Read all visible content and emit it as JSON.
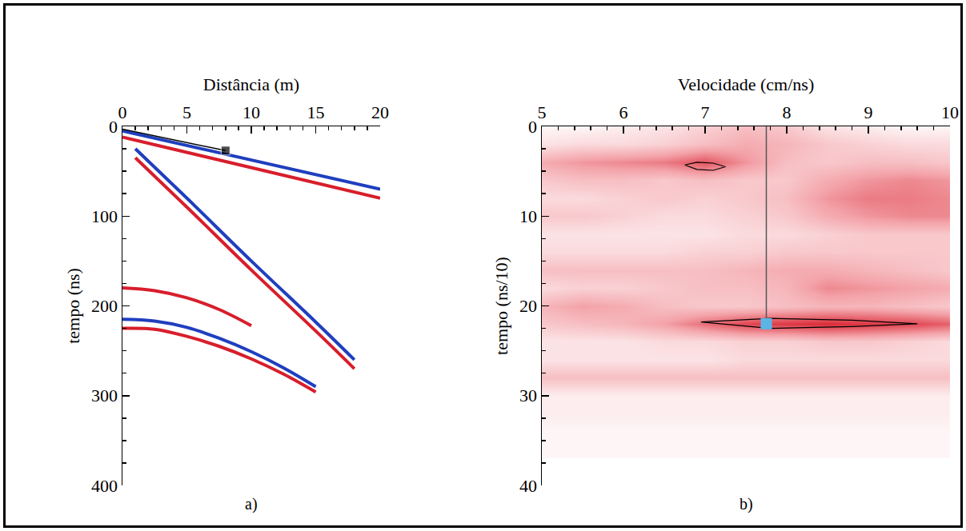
{
  "chart_data": [
    {
      "type": "line",
      "panel_label": "a)",
      "x_label": "Distância (m)",
      "y_label": "tempo (ns)",
      "xlim": [
        0,
        20
      ],
      "xticks": [
        0,
        5,
        10,
        15,
        20
      ],
      "ylim": [
        400,
        0
      ],
      "yticks": [
        0,
        100,
        200,
        300,
        400
      ],
      "series": [
        {
          "color": "#1f3fbf",
          "x": [
            0,
            20
          ],
          "values": [
            5,
            70
          ]
        },
        {
          "color": "#d81e2c",
          "x": [
            0,
            20
          ],
          "values": [
            12,
            80
          ]
        },
        {
          "color": "#1f3fbf",
          "x": [
            1,
            5,
            10,
            15,
            18
          ],
          "values": [
            25,
            80,
            150,
            218,
            260
          ]
        },
        {
          "color": "#d81e2c",
          "x": [
            1,
            5,
            10,
            15,
            18
          ],
          "values": [
            35,
            90,
            160,
            228,
            270
          ]
        },
        {
          "color": "#d81e2c",
          "x": [
            0,
            2.5,
            5,
            7.5,
            10
          ],
          "values": [
            180,
            183,
            191,
            204,
            222
          ]
        },
        {
          "color": "#1f3fbf",
          "x": [
            0,
            2.5,
            5,
            7.5,
            10,
            12.5,
            15
          ],
          "values": [
            215,
            217,
            224,
            236,
            251,
            269,
            290
          ]
        },
        {
          "color": "#d81e2c",
          "x": [
            0,
            2.5,
            5,
            7.5,
            10,
            12.5,
            15
          ],
          "values": [
            225,
            226,
            234,
            245,
            259,
            276,
            296
          ]
        },
        {
          "color": "#000000",
          "marker": "square",
          "x": [
            0,
            8
          ],
          "values": [
            3,
            27
          ]
        }
      ]
    },
    {
      "type": "heatmap",
      "panel_label": "b)",
      "x_label": "Velocidade (cm/ns)",
      "y_label": "tempo (ns/10)",
      "xlim": [
        5,
        10
      ],
      "xticks": [
        5,
        6,
        7,
        8,
        9,
        10
      ],
      "ylim": [
        40,
        0
      ],
      "yticks": [
        0,
        10,
        20,
        30,
        40
      ],
      "color": "#d81e2c",
      "zlim": [
        0,
        1
      ],
      "x": [
        5,
        5.5,
        6,
        6.5,
        7,
        7.5,
        8,
        8.5,
        9,
        9.5,
        10
      ],
      "y": [
        0,
        2,
        4,
        6,
        8,
        10,
        12,
        14,
        16,
        18,
        20,
        22,
        24,
        26,
        28,
        30,
        32,
        34,
        36
      ],
      "cells": [
        [
          0.05,
          0.05,
          0.1,
          0.15,
          0.25,
          0.35,
          0.3,
          0.15,
          0.1,
          0.05,
          0.05
        ],
        [
          0.15,
          0.2,
          0.2,
          0.25,
          0.35,
          0.45,
          0.4,
          0.3,
          0.25,
          0.2,
          0.2
        ],
        [
          0.45,
          0.55,
          0.6,
          0.65,
          0.8,
          0.55,
          0.35,
          0.3,
          0.35,
          0.35,
          0.3
        ],
        [
          0.3,
          0.35,
          0.35,
          0.3,
          0.35,
          0.3,
          0.3,
          0.45,
          0.55,
          0.6,
          0.55
        ],
        [
          0.2,
          0.2,
          0.25,
          0.3,
          0.25,
          0.3,
          0.35,
          0.55,
          0.65,
          0.65,
          0.6
        ],
        [
          0.3,
          0.3,
          0.25,
          0.2,
          0.2,
          0.25,
          0.3,
          0.45,
          0.55,
          0.6,
          0.6
        ],
        [
          0.15,
          0.15,
          0.15,
          0.15,
          0.15,
          0.2,
          0.2,
          0.25,
          0.3,
          0.3,
          0.3
        ],
        [
          0.2,
          0.2,
          0.2,
          0.2,
          0.25,
          0.25,
          0.3,
          0.3,
          0.3,
          0.3,
          0.3
        ],
        [
          0.35,
          0.35,
          0.35,
          0.35,
          0.35,
          0.4,
          0.45,
          0.45,
          0.4,
          0.35,
          0.3
        ],
        [
          0.2,
          0.25,
          0.25,
          0.3,
          0.35,
          0.35,
          0.4,
          0.6,
          0.55,
          0.5,
          0.45
        ],
        [
          0.4,
          0.5,
          0.45,
          0.35,
          0.3,
          0.3,
          0.35,
          0.4,
          0.4,
          0.35,
          0.3
        ],
        [
          0.3,
          0.35,
          0.4,
          0.5,
          0.7,
          0.85,
          0.9,
          0.95,
          0.9,
          0.85,
          0.75
        ],
        [
          0.15,
          0.15,
          0.15,
          0.2,
          0.2,
          0.25,
          0.25,
          0.3,
          0.3,
          0.25,
          0.2
        ],
        [
          0.15,
          0.15,
          0.15,
          0.15,
          0.15,
          0.2,
          0.2,
          0.2,
          0.2,
          0.2,
          0.2
        ],
        [
          0.35,
          0.35,
          0.35,
          0.35,
          0.35,
          0.35,
          0.35,
          0.35,
          0.35,
          0.35,
          0.35
        ],
        [
          0.1,
          0.1,
          0.1,
          0.1,
          0.1,
          0.1,
          0.1,
          0.1,
          0.1,
          0.1,
          0.1
        ],
        [
          0.1,
          0.1,
          0.1,
          0.1,
          0.1,
          0.1,
          0.1,
          0.1,
          0.1,
          0.1,
          0.1
        ],
        [
          0.05,
          0.05,
          0.05,
          0.05,
          0.05,
          0.05,
          0.05,
          0.05,
          0.05,
          0.05,
          0.05
        ],
        [
          0.05,
          0.05,
          0.05,
          0.05,
          0.05,
          0.05,
          0.05,
          0.05,
          0.05,
          0.05,
          0.05
        ]
      ],
      "contours": [
        {
          "x": [
            6.75,
            6.9,
            7.1,
            7.25,
            7.1,
            6.9,
            6.75
          ],
          "values": [
            4.3,
            4.0,
            4.1,
            4.5,
            4.9,
            4.8,
            4.3
          ]
        },
        {
          "x": [
            6.95,
            7.8,
            8.8,
            9.6,
            8.8,
            7.8,
            6.95
          ],
          "values": [
            21.8,
            21.4,
            21.6,
            22.0,
            22.3,
            22.5,
            21.8
          ]
        }
      ],
      "pick": {
        "velocity": 7.75,
        "time": 22,
        "color": "#5ab4e6"
      }
    }
  ]
}
